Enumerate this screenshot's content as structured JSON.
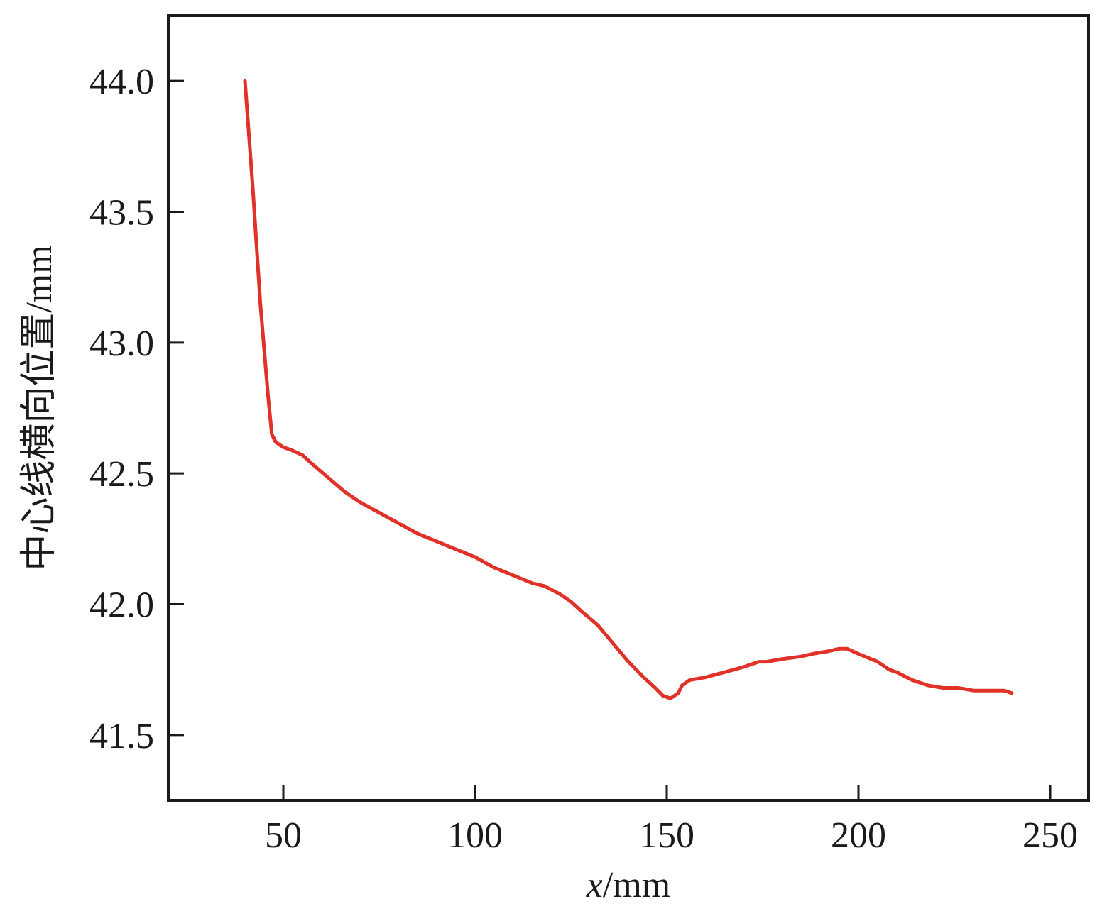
{
  "chart_data": {
    "type": "line",
    "title": "",
    "xlabel_var": "x",
    "xlabel_unit": "/mm",
    "ylabel": "中心线横向位置/mm",
    "xlim": [
      20,
      260
    ],
    "ylim": [
      41.25,
      44.25
    ],
    "x_ticks": [
      50,
      100,
      150,
      200,
      250
    ],
    "x_tick_labels": [
      "50",
      "100",
      "150",
      "200",
      "250"
    ],
    "y_ticks": [
      41.5,
      42.0,
      42.5,
      43.0,
      43.5,
      44.0
    ],
    "y_tick_labels": [
      "41.5",
      "42.0",
      "42.5",
      "43.0",
      "43.5",
      "44.0"
    ],
    "grid": false,
    "series": [
      {
        "color": "#e03228",
        "x": [
          40,
          42,
          44,
          46,
          47,
          48,
          49,
          50,
          52,
          55,
          58,
          62,
          66,
          70,
          75,
          80,
          85,
          90,
          95,
          100,
          105,
          110,
          115,
          118,
          122,
          125,
          128,
          132,
          136,
          140,
          144,
          147,
          149,
          151,
          153,
          154,
          156,
          160,
          165,
          170,
          174,
          176,
          180,
          185,
          188,
          192,
          195,
          197,
          200,
          205,
          208,
          210,
          214,
          218,
          222,
          226,
          230,
          235,
          238,
          240
        ],
        "y": [
          44.0,
          43.6,
          43.15,
          42.8,
          42.65,
          42.62,
          42.61,
          42.6,
          42.59,
          42.57,
          42.53,
          42.48,
          42.43,
          42.39,
          42.35,
          42.31,
          42.27,
          42.24,
          42.21,
          42.18,
          42.14,
          42.11,
          42.08,
          42.07,
          42.04,
          42.01,
          41.97,
          41.92,
          41.85,
          41.78,
          41.72,
          41.68,
          41.65,
          41.64,
          41.66,
          41.69,
          41.71,
          41.72,
          41.74,
          41.76,
          41.78,
          41.78,
          41.79,
          41.8,
          41.81,
          41.82,
          41.83,
          41.83,
          41.81,
          41.78,
          41.75,
          41.74,
          41.71,
          41.69,
          41.68,
          41.68,
          41.67,
          41.67,
          41.67,
          41.66
        ]
      }
    ]
  }
}
